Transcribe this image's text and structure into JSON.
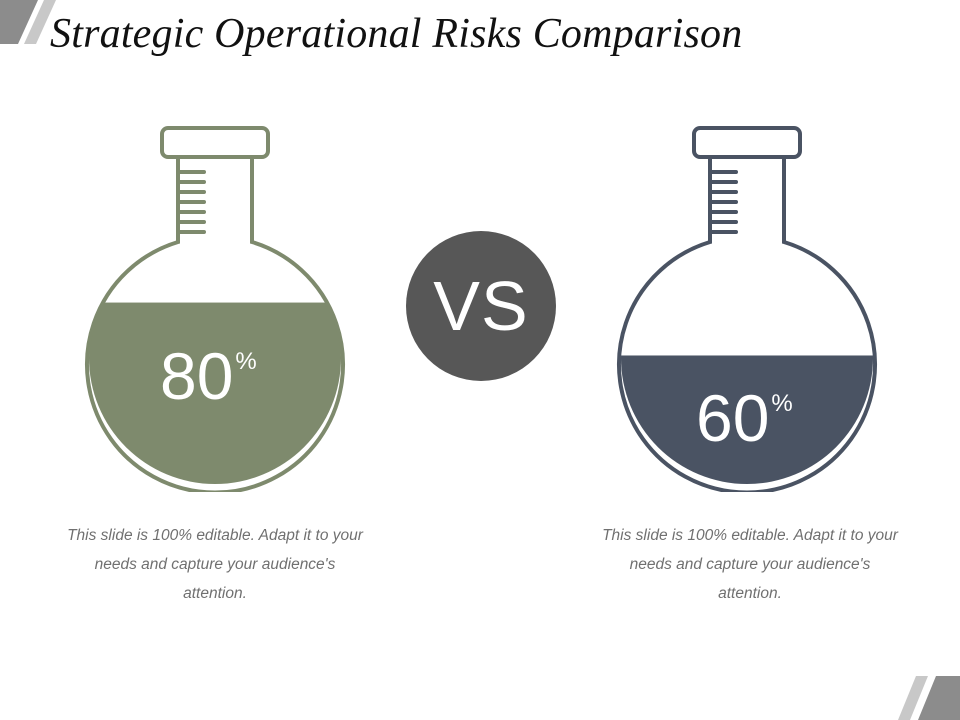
{
  "title": "Strategic Operational Risks Comparison",
  "vs_label": "VS",
  "colors": {
    "left_fill": "#7E8A6D",
    "right_fill": "#4A5363",
    "vs_circle": "#575757",
    "caption_text": "#707070",
    "deco": "#8C8C8C"
  },
  "flasks": [
    {
      "value": "80",
      "percent_sign": "%",
      "fill_fraction": 0.8,
      "caption": "This slide is 100% editable. Adapt it to your needs and capture your audience's attention."
    },
    {
      "value": "60",
      "percent_sign": "%",
      "fill_fraction": 0.6,
      "caption": "This slide is 100% editable. Adapt it to your needs and capture your audience's attention."
    }
  ]
}
